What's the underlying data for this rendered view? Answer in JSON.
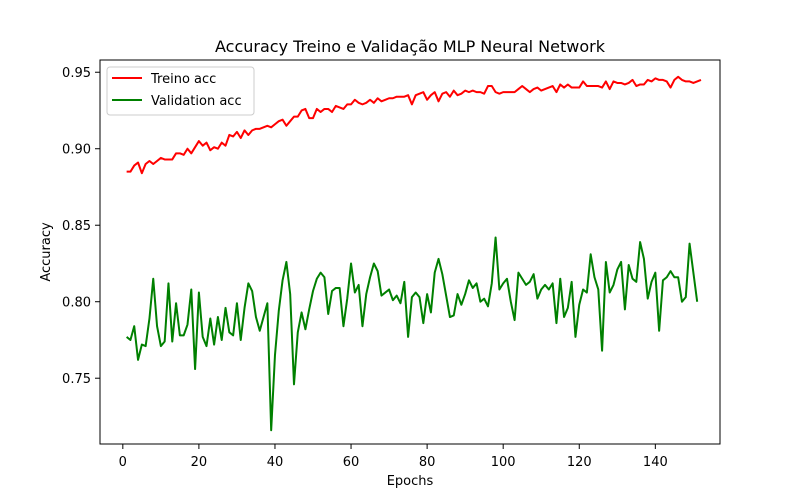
{
  "chart_data": {
    "type": "line",
    "title": "Accuracy Treino e Validação MLP Neural Network",
    "xlabel": "Epochs",
    "ylabel": "Accuracy",
    "xlim": [
      -6,
      157
    ],
    "ylim": [
      0.707,
      0.958
    ],
    "xticks": [
      0,
      20,
      40,
      60,
      80,
      100,
      120,
      140
    ],
    "yticks": [
      0.75,
      0.8,
      0.85,
      0.9,
      0.95
    ],
    "ytick_labels": [
      "0.75",
      "0.80",
      "0.85",
      "0.90",
      "0.95"
    ],
    "grid": false,
    "legend_position": "top-left",
    "x_start": 1,
    "series": [
      {
        "name": "Treino acc",
        "color": "#ff0000",
        "values": [
          0.885,
          0.885,
          0.889,
          0.891,
          0.884,
          0.89,
          0.892,
          0.89,
          0.892,
          0.894,
          0.893,
          0.893,
          0.893,
          0.897,
          0.897,
          0.896,
          0.9,
          0.897,
          0.901,
          0.905,
          0.902,
          0.904,
          0.899,
          0.901,
          0.9,
          0.904,
          0.902,
          0.909,
          0.908,
          0.911,
          0.907,
          0.912,
          0.909,
          0.912,
          0.913,
          0.913,
          0.914,
          0.915,
          0.914,
          0.916,
          0.918,
          0.919,
          0.915,
          0.918,
          0.921,
          0.921,
          0.925,
          0.926,
          0.92,
          0.92,
          0.926,
          0.924,
          0.926,
          0.926,
          0.924,
          0.928,
          0.927,
          0.926,
          0.929,
          0.929,
          0.932,
          0.93,
          0.929,
          0.93,
          0.932,
          0.93,
          0.933,
          0.931,
          0.932,
          0.933,
          0.933,
          0.934,
          0.934,
          0.934,
          0.935,
          0.929,
          0.935,
          0.936,
          0.937,
          0.932,
          0.935,
          0.937,
          0.931,
          0.936,
          0.937,
          0.934,
          0.938,
          0.935,
          0.936,
          0.938,
          0.937,
          0.938,
          0.937,
          0.937,
          0.936,
          0.941,
          0.941,
          0.937,
          0.936,
          0.937,
          0.937,
          0.937,
          0.937,
          0.939,
          0.941,
          0.939,
          0.937,
          0.939,
          0.94,
          0.938,
          0.939,
          0.94,
          0.941,
          0.937,
          0.942,
          0.94,
          0.942,
          0.94,
          0.94,
          0.94,
          0.944,
          0.941,
          0.941,
          0.941,
          0.941,
          0.94,
          0.944,
          0.939,
          0.944,
          0.943,
          0.943,
          0.942,
          0.943,
          0.945,
          0.941,
          0.942,
          0.942,
          0.945,
          0.944,
          0.946,
          0.945,
          0.945,
          0.944,
          0.94,
          0.945,
          0.947,
          0.945,
          0.944,
          0.944,
          0.943,
          0.944,
          0.945
        ]
      },
      {
        "name": "Validation acc",
        "color": "#008000",
        "values": [
          0.777,
          0.775,
          0.784,
          0.762,
          0.772,
          0.771,
          0.789,
          0.815,
          0.784,
          0.771,
          0.774,
          0.812,
          0.774,
          0.799,
          0.778,
          0.778,
          0.785,
          0.808,
          0.756,
          0.806,
          0.777,
          0.771,
          0.789,
          0.772,
          0.79,
          0.775,
          0.796,
          0.78,
          0.778,
          0.799,
          0.775,
          0.796,
          0.812,
          0.807,
          0.79,
          0.781,
          0.79,
          0.799,
          0.716,
          0.765,
          0.794,
          0.814,
          0.826,
          0.805,
          0.746,
          0.78,
          0.793,
          0.782,
          0.795,
          0.807,
          0.815,
          0.819,
          0.816,
          0.792,
          0.807,
          0.809,
          0.809,
          0.784,
          0.802,
          0.825,
          0.806,
          0.811,
          0.784,
          0.805,
          0.816,
          0.825,
          0.82,
          0.804,
          0.806,
          0.808,
          0.801,
          0.804,
          0.799,
          0.813,
          0.777,
          0.803,
          0.806,
          0.803,
          0.786,
          0.805,
          0.793,
          0.819,
          0.828,
          0.818,
          0.804,
          0.79,
          0.791,
          0.805,
          0.798,
          0.805,
          0.814,
          0.809,
          0.812,
          0.8,
          0.802,
          0.797,
          0.812,
          0.842,
          0.808,
          0.812,
          0.815,
          0.8,
          0.788,
          0.819,
          0.815,
          0.811,
          0.813,
          0.818,
          0.802,
          0.808,
          0.811,
          0.808,
          0.812,
          0.786,
          0.815,
          0.79,
          0.796,
          0.813,
          0.777,
          0.798,
          0.808,
          0.806,
          0.831,
          0.816,
          0.808,
          0.768,
          0.826,
          0.806,
          0.811,
          0.821,
          0.826,
          0.795,
          0.824,
          0.815,
          0.813,
          0.839,
          0.828,
          0.802,
          0.813,
          0.819,
          0.781,
          0.814,
          0.816,
          0.82,
          0.816,
          0.816,
          0.8,
          0.803,
          0.838,
          0.819,
          0.8
        ]
      }
    ]
  }
}
